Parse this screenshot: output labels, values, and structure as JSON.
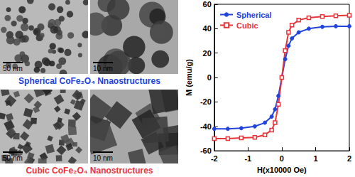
{
  "micrographs": [
    {
      "caption": "Spherical CoFe₂O₄ Nnaostructures",
      "color": "#2244dd",
      "shape": "sphere",
      "scale_bars": [
        "50 nm",
        "10 nm"
      ]
    },
    {
      "caption": "Cubic CoFe₂O₄ Nanostructures",
      "color": "#e8343a",
      "shape": "cube",
      "scale_bars": [
        "50 nm",
        "10 nm"
      ]
    }
  ],
  "chart_data": {
    "type": "line",
    "x_label": "H(x10000 Oe)",
    "y_label": "M (emu/g)",
    "x": [
      -2,
      -1.6,
      -1.2,
      -0.8,
      -0.5,
      -0.3,
      -0.2,
      -0.1,
      0,
      0.1,
      0.2,
      0.3,
      0.5,
      0.8,
      1.2,
      1.6,
      2
    ],
    "series": [
      {
        "name": "Spherical",
        "color": "#2244dd",
        "marker": "circle",
        "values": [
          -42,
          -42,
          -41.5,
          -40,
          -37,
          -32,
          -26,
          -15,
          0,
          15,
          26,
          32,
          37,
          40,
          41.5,
          42,
          42
        ]
      },
      {
        "name": "Cubic",
        "color": "#e8343a",
        "marker": "square",
        "values": [
          -50,
          -50,
          -49.5,
          -49,
          -47,
          -43,
          -37,
          -22,
          0,
          22,
          37,
          43,
          47,
          49,
          50,
          50.5,
          51
        ]
      }
    ],
    "xlim": [
      -2,
      2
    ],
    "xticks": [
      -2,
      -1,
      0,
      1,
      2
    ],
    "ylim": [
      -60,
      60
    ],
    "yticks": [
      -60,
      -40,
      -20,
      0,
      20,
      40,
      60
    ],
    "grid": false,
    "legend": "upper left"
  }
}
